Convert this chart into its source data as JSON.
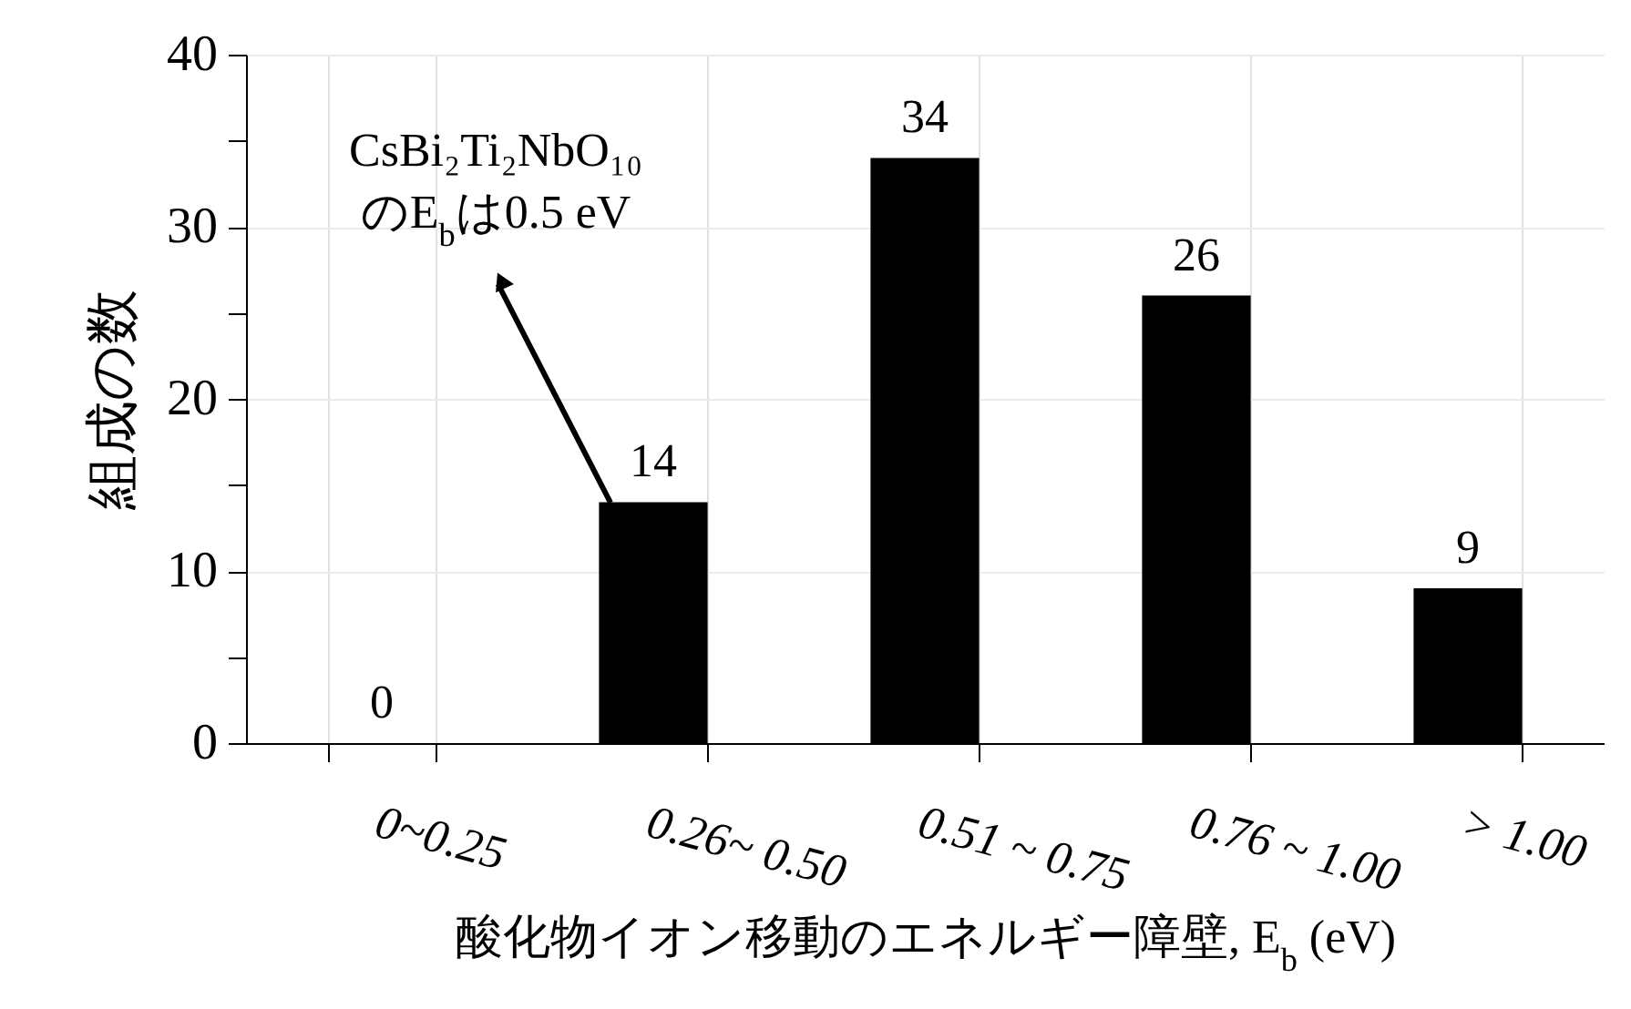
{
  "chart_data": {
    "type": "bar",
    "xlabel": "酸化物イオン移動のエネルギー障壁, E$_{b}$ (eV)",
    "ylabel": "組成の数",
    "categories": [
      "0~0.25",
      "0.26~ 0.50",
      "0.51 ~ 0.75",
      "0.76 ~ 1.00",
      "> 1.00"
    ],
    "values": [
      0,
      14,
      34,
      26,
      9
    ],
    "color": "#000000",
    "ylim": [
      0,
      40
    ],
    "yticks": [
      0,
      {
        "value": 5,
        "label": null
      },
      10,
      {
        "value": 15,
        "label": null
      },
      20,
      {
        "value": 25,
        "label": null
      },
      30,
      {
        "value": 35,
        "label": null
      },
      40
    ],
    "grid": true,
    "data_labels": true,
    "annotations": [
      "CsBi₂Ti₂NbO₁₀\nのE$_{b}$は0.5 eV"
    ]
  }
}
